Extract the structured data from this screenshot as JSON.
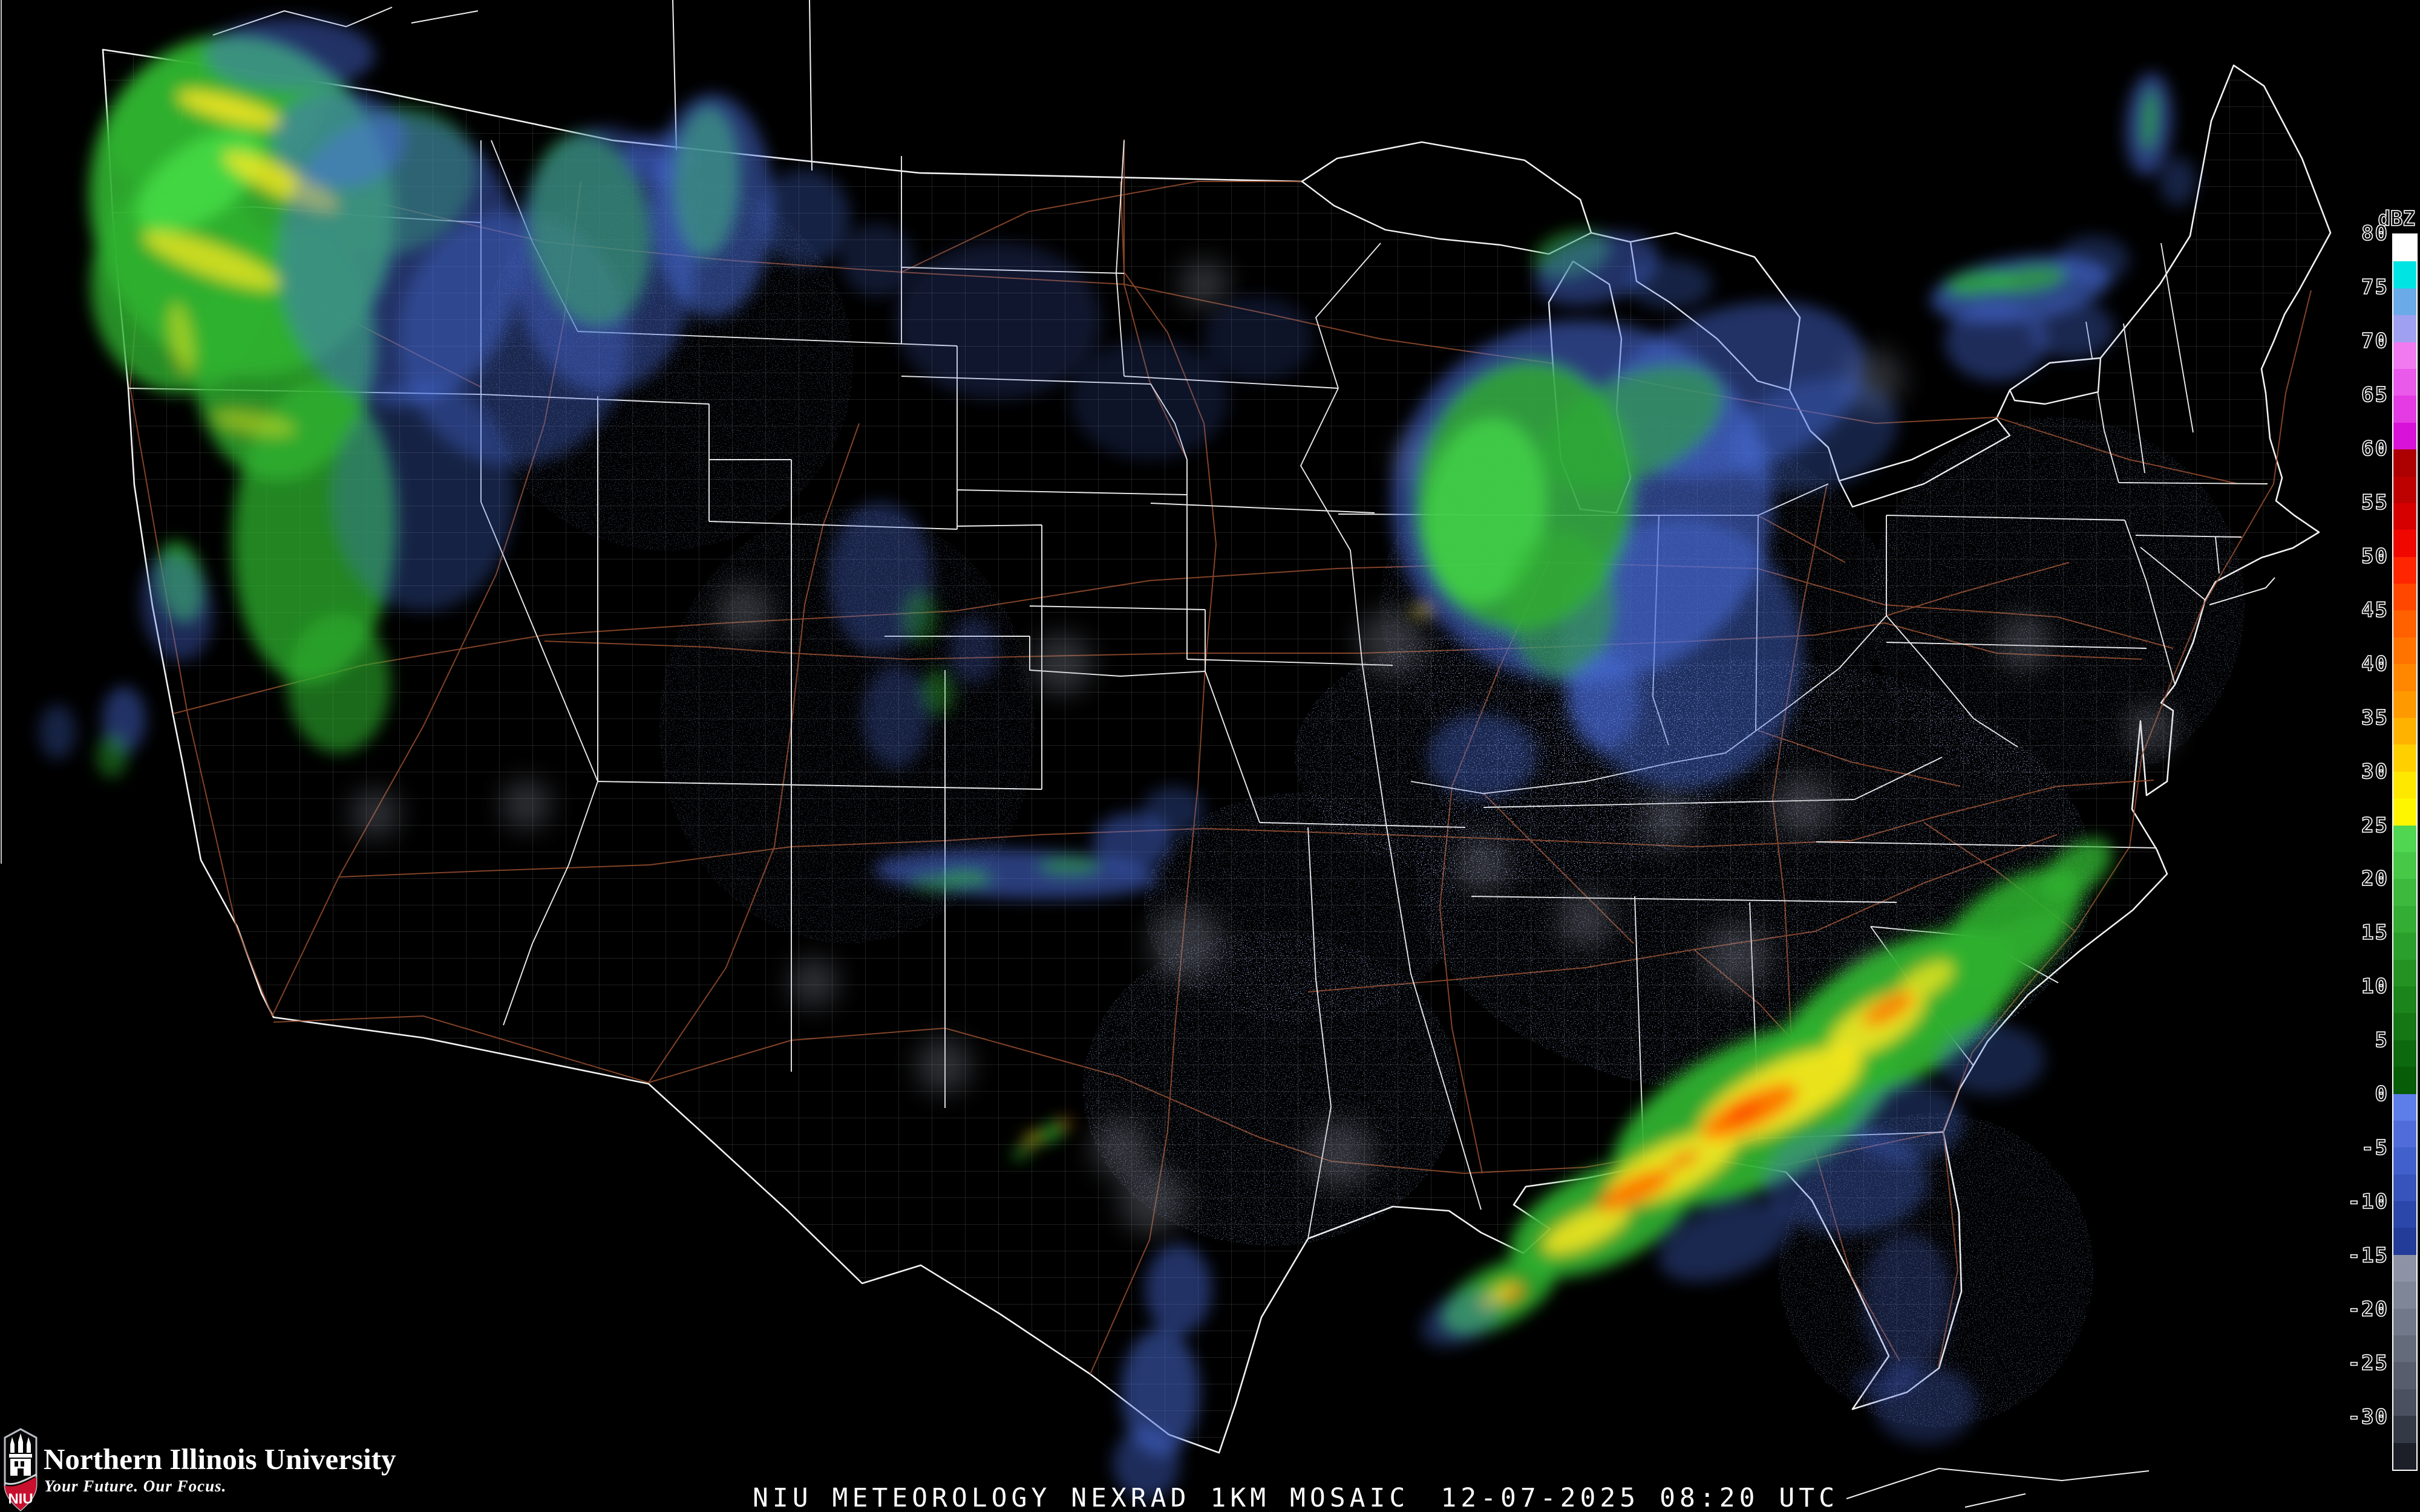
{
  "footer": {
    "product_line": "NIU METEOROLOGY NEXRAD 1KM MOSAIC",
    "timestamp": "12-07-2025 08:20 UTC"
  },
  "branding": {
    "university": "Northern Illinois University",
    "tagline": "Your Future. Our Focus.",
    "acronym": "NIU",
    "shield_red": "#c8102e"
  },
  "colorbar": {
    "unit_label": "dBZ",
    "ticks": [
      80,
      75,
      70,
      65,
      60,
      55,
      50,
      45,
      40,
      35,
      30,
      25,
      20,
      15,
      10,
      5,
      0,
      -5,
      -10,
      -15,
      -20,
      -25,
      -30
    ],
    "segment_colors": [
      "#ffffff",
      "#00e4e4",
      "#6aaae8",
      "#a0a0f0",
      "#f07af0",
      "#ea5aea",
      "#e33ce3",
      "#d912d9",
      "#ad0000",
      "#bd0000",
      "#d70000",
      "#f00800",
      "#ff2600",
      "#ff4700",
      "#ff6000",
      "#ff7400",
      "#ff8700",
      "#ff9900",
      "#ffb300",
      "#ffd000",
      "#ffe800",
      "#fdf600",
      "#50d650",
      "#47c847",
      "#3dba3d",
      "#34ad34",
      "#2b9f2b",
      "#239223",
      "#1b851b",
      "#147714",
      "#0d690d",
      "#075c07",
      "#5d7de8",
      "#4f6cda",
      "#4260cb",
      "#3754bc",
      "#2c47aa",
      "#233c9a",
      "#8d93a5",
      "#7f8697",
      "#717889",
      "#646b7b",
      "#575d6d",
      "#4a505f",
      "#343946",
      "#1c1f27"
    ]
  },
  "map_colors": {
    "background": "#000000",
    "state_border": "#ebebeb",
    "county_line": "#7a7a7a",
    "highway": "#9a4f2e",
    "coast": "#f2f2f2"
  },
  "radar": {
    "palette": {
      "blue": "#4a6fe0",
      "blue_dim": "#3a57b8",
      "green": "#2fb12f",
      "green_bright": "#49e049",
      "yellow": "#ffe91e",
      "orange": "#ff9b1e",
      "deep_orange": "#ff6a00",
      "red": "#ff2a00",
      "clutter": "#8e94a6"
    },
    "echoes": [
      [
        400,
        340,
        250,
        285,
        -15,
        "green",
        0.92
      ],
      [
        360,
        195,
        190,
        115,
        -18,
        "green",
        0.85
      ],
      [
        300,
        470,
        150,
        180,
        0,
        "green",
        0.8
      ],
      [
        470,
        585,
        150,
        210,
        5,
        "green",
        0.8
      ],
      [
        520,
        880,
        135,
        250,
        3,
        "green",
        0.75
      ],
      [
        560,
        1130,
        85,
        115,
        0,
        "green",
        0.6
      ],
      [
        640,
        300,
        150,
        120,
        -20,
        "green",
        0.5
      ],
      [
        330,
        300,
        120,
        60,
        -35,
        "green_bright",
        0.8
      ],
      [
        380,
        180,
        90,
        20,
        15,
        "yellow",
        0.85
      ],
      [
        465,
        300,
        105,
        24,
        25,
        "yellow",
        0.8
      ],
      [
        350,
        430,
        120,
        26,
        20,
        "yellow",
        0.75
      ],
      [
        300,
        560,
        60,
        18,
        80,
        "yellow",
        0.5
      ],
      [
        420,
        700,
        70,
        18,
        10,
        "yellow",
        0.45
      ],
      [
        660,
        430,
        200,
        240,
        0,
        "blue",
        0.45
      ],
      [
        850,
        560,
        190,
        210,
        0,
        "blue",
        0.35
      ],
      [
        700,
        820,
        150,
        190,
        0,
        "blue",
        0.3
      ],
      [
        560,
        230,
        110,
        80,
        0,
        "blue",
        0.5
      ],
      [
        480,
        90,
        140,
        60,
        0,
        "blue",
        0.45
      ],
      [
        975,
        380,
        100,
        160,
        -8,
        "green",
        0.7
      ],
      [
        1000,
        430,
        150,
        220,
        0,
        "blue",
        0.4
      ],
      [
        1090,
        260,
        60,
        40,
        0,
        "blue",
        0.4
      ],
      [
        1168,
        300,
        55,
        125,
        2,
        "green",
        0.8
      ],
      [
        1178,
        340,
        100,
        185,
        0,
        "blue",
        0.5
      ],
      [
        1330,
        360,
        75,
        80,
        0,
        "blue",
        0.3
      ],
      [
        1450,
        430,
        60,
        60,
        0,
        "blue",
        0.22
      ],
      [
        1650,
        530,
        170,
        130,
        0,
        "blue",
        0.2
      ],
      [
        1900,
        660,
        130,
        100,
        0,
        "blue",
        0.18
      ],
      [
        2080,
        560,
        90,
        70,
        0,
        "blue",
        0.18
      ],
      [
        2598,
        420,
        65,
        38,
        -15,
        "green",
        0.55
      ],
      [
        2640,
        445,
        105,
        55,
        -15,
        "blue",
        0.45
      ],
      [
        2760,
        470,
        70,
        40,
        0,
        "blue",
        0.3
      ],
      [
        2615,
        830,
        315,
        300,
        0,
        "blue",
        0.55
      ],
      [
        2780,
        1080,
        200,
        225,
        0,
        "blue",
        0.42
      ],
      [
        2865,
        645,
        225,
        135,
        -18,
        "blue",
        0.45
      ],
      [
        3000,
        720,
        140,
        90,
        -15,
        "blue",
        0.3
      ],
      [
        2520,
        820,
        180,
        225,
        8,
        "green",
        0.8
      ],
      [
        2455,
        845,
        100,
        155,
        8,
        "green_bright",
        0.65
      ],
      [
        2700,
        705,
        160,
        85,
        -25,
        "green",
        0.55
      ],
      [
        2580,
        1000,
        90,
        120,
        0,
        "green",
        0.5
      ],
      [
        2650,
        1160,
        60,
        80,
        0,
        "blue",
        0.45
      ],
      [
        2350,
        1010,
        16,
        8,
        0,
        "yellow",
        0.7
      ],
      [
        2450,
        1250,
        90,
        70,
        0,
        "blue",
        0.35
      ],
      [
        3340,
        478,
        150,
        52,
        -8,
        "blue",
        0.6
      ],
      [
        3272,
        468,
        58,
        20,
        -8,
        "green",
        0.8
      ],
      [
        3352,
        462,
        66,
        22,
        -8,
        "green",
        0.7
      ],
      [
        3300,
        565,
        85,
        65,
        0,
        "blue",
        0.4
      ],
      [
        3425,
        545,
        70,
        48,
        0,
        "blue",
        0.35
      ],
      [
        3460,
        430,
        60,
        40,
        0,
        "blue",
        0.3
      ],
      [
        3552,
        205,
        38,
        85,
        4,
        "blue",
        0.55
      ],
      [
        3553,
        198,
        13,
        52,
        4,
        "green",
        0.75
      ],
      [
        3600,
        300,
        30,
        40,
        0,
        "blue",
        0.3
      ],
      [
        298,
        962,
        38,
        68,
        -10,
        "green",
        0.75
      ],
      [
        292,
        1005,
        58,
        88,
        -10,
        "blue",
        0.38
      ],
      [
        205,
        1190,
        36,
        55,
        0,
        "blue",
        0.45
      ],
      [
        185,
        1250,
        26,
        36,
        0,
        "green",
        0.45
      ],
      [
        95,
        1210,
        30,
        45,
        0,
        "blue",
        0.3
      ],
      [
        1680,
        1445,
        235,
        40,
        2,
        "blue",
        0.55
      ],
      [
        1598,
        1452,
        42,
        13,
        2,
        "green",
        0.65
      ],
      [
        1768,
        1432,
        52,
        15,
        0,
        "green",
        0.55
      ],
      [
        1545,
        1460,
        40,
        12,
        3,
        "green",
        0.5
      ],
      [
        1872,
        1392,
        65,
        48,
        0,
        "blue",
        0.45
      ],
      [
        1940,
        1340,
        50,
        40,
        0,
        "blue",
        0.3
      ],
      [
        1738,
        1872,
        28,
        13,
        -30,
        "green",
        0.75
      ],
      [
        1705,
        1882,
        11,
        7,
        -30,
        "yellow",
        0.85
      ],
      [
        1762,
        1856,
        9,
        6,
        0,
        "deep_orange",
        0.7
      ],
      [
        1690,
        1905,
        20,
        10,
        -30,
        "green",
        0.6
      ],
      [
        1455,
        955,
        85,
        125,
        0,
        "blue",
        0.32
      ],
      [
        1480,
        1185,
        55,
        85,
        0,
        "blue",
        0.28
      ],
      [
        1550,
        1145,
        28,
        38,
        0,
        "green",
        0.4
      ],
      [
        1520,
        1020,
        30,
        45,
        0,
        "green",
        0.35
      ],
      [
        1610,
        1075,
        40,
        55,
        0,
        "blue",
        0.25
      ],
      [
        2478,
        2142,
        105,
        48,
        -28,
        "green",
        0.88
      ],
      [
        2650,
        2012,
        165,
        78,
        -25,
        "green",
        0.92
      ],
      [
        2900,
        1842,
        255,
        118,
        -26,
        "green",
        0.95
      ],
      [
        3130,
        1682,
        228,
        108,
        -30,
        "green",
        0.95
      ],
      [
        3322,
        1532,
        138,
        68,
        -35,
        "green",
        0.88
      ],
      [
        3432,
        1438,
        68,
        38,
        -38,
        "green",
        0.8
      ],
      [
        3260,
        1625,
        190,
        55,
        -35,
        "green",
        0.65
      ],
      [
        2622,
        2032,
        78,
        28,
        -25,
        "yellow",
        0.85
      ],
      [
        2762,
        1932,
        118,
        42,
        -25,
        "yellow",
        0.88
      ],
      [
        2942,
        1812,
        148,
        52,
        -26,
        "yellow",
        0.9
      ],
      [
        3102,
        1692,
        88,
        38,
        -30,
        "yellow",
        0.85
      ],
      [
        3182,
        1622,
        52,
        24,
        -30,
        "yellow",
        0.75
      ],
      [
        2478,
        2142,
        38,
        15,
        -28,
        "yellow",
        0.75
      ],
      [
        2702,
        1968,
        68,
        22,
        -25,
        "deep_orange",
        0.85
      ],
      [
        2892,
        1838,
        88,
        28,
        -26,
        "deep_orange",
        0.88
      ],
      [
        3122,
        1668,
        48,
        18,
        -30,
        "deep_orange",
        0.8
      ],
      [
        2502,
        2138,
        20,
        9,
        -28,
        "deep_orange",
        0.7
      ],
      [
        2882,
        1838,
        32,
        11,
        -26,
        "red",
        0.75
      ],
      [
        2782,
        1918,
        30,
        10,
        -25,
        "red",
        0.6
      ],
      [
        3052,
        1952,
        135,
        88,
        0,
        "blue",
        0.35
      ],
      [
        3152,
        1855,
        95,
        65,
        0,
        "blue",
        0.3
      ],
      [
        2852,
        2052,
        115,
        58,
        -20,
        "blue",
        0.35
      ],
      [
        3292,
        1752,
        88,
        58,
        0,
        "blue",
        0.3
      ],
      [
        2415,
        2180,
        70,
        40,
        -25,
        "blue",
        0.35
      ],
      [
        3152,
        2152,
        75,
        115,
        0,
        "blue",
        0.25
      ],
      [
        3182,
        2322,
        85,
        65,
        0,
        "blue",
        0.28
      ],
      [
        3118,
        2282,
        55,
        28,
        -10,
        "blue_dim",
        0.3
      ],
      [
        1948,
        2132,
        55,
        75,
        0,
        "blue",
        0.45
      ],
      [
        1918,
        2302,
        65,
        105,
        0,
        "blue",
        0.5
      ],
      [
        1895,
        2420,
        55,
        60,
        0,
        "blue",
        0.4
      ]
    ],
    "clutter": [
      [
        1960,
        1560,
        60
      ],
      [
        1905,
        1985,
        55
      ],
      [
        1852,
        1898,
        48
      ],
      [
        2215,
        1908,
        55
      ],
      [
        2300,
        1062,
        55
      ],
      [
        2980,
        1332,
        50
      ],
      [
        2870,
        1582,
        55
      ],
      [
        3100,
        1625,
        50
      ],
      [
        2450,
        1430,
        45
      ],
      [
        2620,
        1520,
        45
      ],
      [
        1560,
        1762,
        45
      ],
      [
        1755,
        1098,
        50
      ],
      [
        1345,
        1625,
        40
      ],
      [
        1230,
        1010,
        45
      ],
      [
        870,
        1330,
        40
      ],
      [
        620,
        1345,
        40
      ],
      [
        3345,
        1062,
        45
      ],
      [
        3555,
        1205,
        40
      ],
      [
        2755,
        1355,
        45
      ],
      [
        3095,
        628,
        50
      ],
      [
        2350,
        760,
        45
      ],
      [
        1990,
        470,
        40
      ]
    ]
  }
}
